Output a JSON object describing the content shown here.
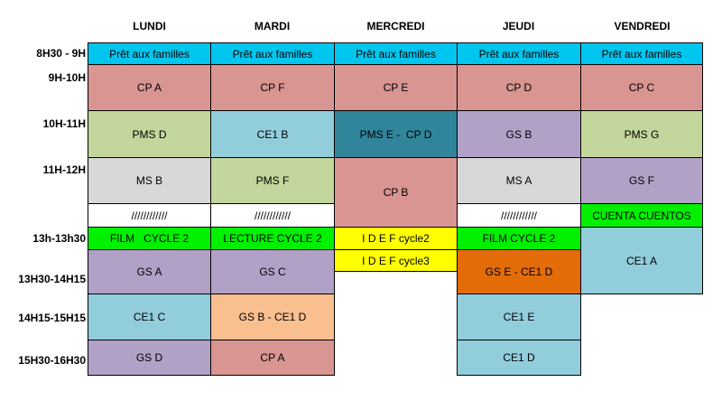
{
  "days": {
    "mon": "LUNDI",
    "tue": "MARDI",
    "wed": "MERCREDI",
    "thu": "JEUDI",
    "fri": "VENDREDI"
  },
  "times": {
    "t1": "8H30 - 9H",
    "t2": "9H-10H",
    "t3": "10H-11H",
    "t4": "11H-12H",
    "t5": "13h-13h30",
    "t6": "13H30-14H15",
    "t7": "14H15-15H15",
    "t8": "15H30-16H30"
  },
  "schedule": {
    "mon": {
      "pret": "Prêt aux familles",
      "s9": "CP A",
      "s10": "PMS D",
      "s11": "MS B",
      "lunch": "////////////",
      "s13": "FILM   CYCLE 2",
      "s1330": "GS A",
      "s1415": "CE1 C",
      "s1530": "GS D"
    },
    "tue": {
      "pret": "Prêt aux familles",
      "s9": "CP F",
      "s10": "CE1 B",
      "s11": "PMS F",
      "lunch": "////////////",
      "s13": "LECTURE CYCLE 2",
      "s1330": "GS C",
      "s1415": "GS B - CE1 D",
      "s1530": "CP A"
    },
    "wed": {
      "pret": "Prêt aux familles",
      "s9": "CP E",
      "s10": "PMS E -  CP D",
      "s11": "CP B",
      "s13a": "I D E F cycle2",
      "s13b": "I D E F cycle3"
    },
    "thu": {
      "pret": "Prêt aux familles",
      "s9": "CP D",
      "s10": "GS B",
      "s11": "MS A",
      "lunch": "////////////",
      "s13": "FILM CYCLE 2",
      "s1330": "GS E - CE1 D",
      "s1415": "CE1 E",
      "s1530": "CE1 D"
    },
    "fri": {
      "pret": "Prêt aux familles",
      "s9": "CP C",
      "s10": "PMS G",
      "s11": "GS F",
      "lunch": "CUENTA CUENTOS",
      "s13": "CE1 A"
    }
  },
  "colors": {
    "pret": "#00c6ef",
    "pink": "#d99591",
    "green": "#c3d69b",
    "light_blue": "#92cddc",
    "teal": "#31859b",
    "purple": "#b2a1c7",
    "grey": "#d8d8d8",
    "lime": "#00f000",
    "yellow": "#ffff00",
    "orange": "#e36c09",
    "peach": "#fabf8f"
  }
}
